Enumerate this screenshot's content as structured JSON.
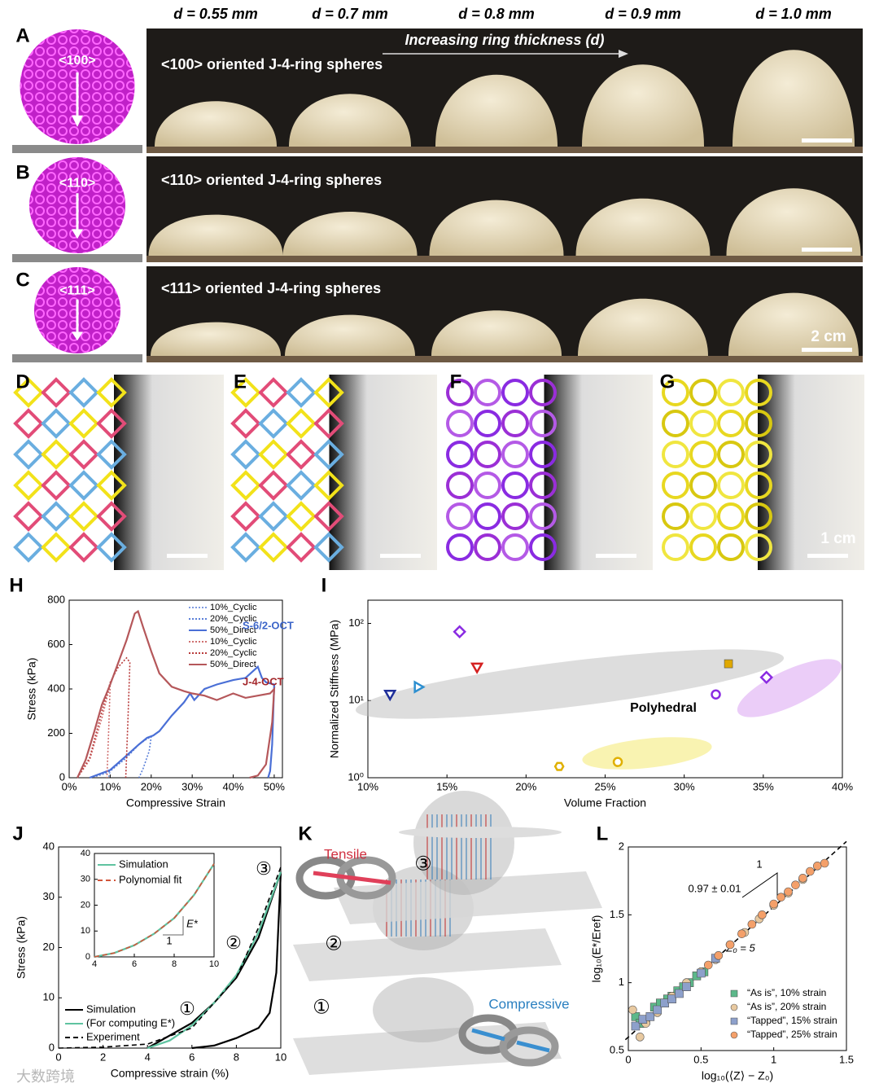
{
  "figure": {
    "panel_labels": [
      "A",
      "B",
      "C",
      "D",
      "E",
      "F",
      "G",
      "H",
      "I",
      "J",
      "K",
      "L"
    ],
    "column_headers": [
      "d = 0.55 mm",
      "d = 0.7 mm",
      "d = 0.8 mm",
      "d = 0.9 mm",
      "d = 1.0 mm"
    ],
    "arrow_label": "Increasing ring thickness (d)",
    "rows": [
      {
        "sphere": "<100>",
        "caption": "<100> oriented J-4-ring spheres"
      },
      {
        "sphere": "<110>",
        "caption": "<110> oriented J-4-ring spheres"
      },
      {
        "sphere": "<111>",
        "caption": "<111> oriented J-4-ring spheres"
      }
    ],
    "scale_bar_abc": "2 cm",
    "scale_bar_g": "1 cm",
    "k": {
      "tensile": "Tensile",
      "compressive": "Compressive",
      "steps": [
        "①",
        "②",
        "③"
      ]
    },
    "watermark": "大数跨境"
  },
  "chart_data": [
    {
      "type": "line",
      "xlabel": "Compressive Strain",
      "ylabel": "Stress (kPa)",
      "xlim": [
        0,
        52
      ],
      "ylim": [
        0,
        800
      ],
      "xticks": [
        {
          "value": 0,
          "label": "0%"
        },
        {
          "value": 10,
          "label": "10%"
        },
        {
          "value": 20,
          "label": "20%"
        },
        {
          "value": 30,
          "label": "30%"
        },
        {
          "value": 40,
          "label": "40%"
        },
        {
          "value": 50,
          "label": "50%"
        }
      ],
      "yticks": [
        0,
        200,
        400,
        600,
        800
      ],
      "legend_groups": [
        {
          "label": "S-6/2-OCT",
          "color": "#3d66c9"
        },
        {
          "label": "J-4-OCT",
          "color": "#a3262a"
        }
      ],
      "series": [
        {
          "name": "10%_Cyclic",
          "color": "#7f9be0",
          "dash": "dotted",
          "x": [
            5,
            7,
            9,
            10,
            9.6
          ],
          "values": [
            0,
            8,
            20,
            30,
            0
          ]
        },
        {
          "name": "20%_Cyclic",
          "color": "#5a7fd8",
          "dash": "dotted",
          "x": [
            5,
            10,
            14,
            17,
            19,
            20,
            19.5,
            18,
            17
          ],
          "values": [
            0,
            30,
            90,
            150,
            175,
            185,
            120,
            40,
            0
          ]
        },
        {
          "name": "50%_Direct",
          "color": "#4a6fd6",
          "dash": "solid",
          "x": [
            5,
            10,
            14,
            17,
            19,
            20.5,
            22,
            25,
            28,
            29.5,
            30.5,
            33,
            36,
            40,
            43,
            46,
            47,
            48,
            50,
            49.5,
            49,
            48.5
          ],
          "values": [
            0,
            35,
            100,
            150,
            180,
            190,
            210,
            280,
            340,
            380,
            350,
            400,
            420,
            440,
            450,
            500,
            450,
            430,
            420,
            150,
            30,
            0
          ]
        },
        {
          "name": "10%_Cyclic",
          "color": "#d07070",
          "dash": "dotted",
          "x": [
            2,
            5,
            8,
            9.5,
            10,
            9.6,
            9.2
          ],
          "values": [
            0,
            80,
            270,
            380,
            420,
            200,
            0
          ]
        },
        {
          "name": "20%_Cyclic",
          "color": "#b83a3a",
          "dash": "dotted",
          "x": [
            2,
            5,
            8,
            10,
            12,
            14,
            14.8,
            14.3,
            13.8
          ],
          "values": [
            0,
            90,
            300,
            430,
            500,
            540,
            520,
            250,
            0
          ]
        },
        {
          "name": "50%_Direct",
          "color": "#b5575a",
          "dash": "solid",
          "x": [
            2,
            4,
            6,
            8,
            10,
            12,
            14,
            16,
            16.8,
            18,
            20,
            22,
            25,
            28,
            30,
            33,
            36,
            40,
            43,
            46,
            49,
            50,
            49.5,
            48,
            46,
            44
          ],
          "values": [
            0,
            80,
            200,
            330,
            420,
            520,
            620,
            740,
            750,
            680,
            570,
            470,
            410,
            390,
            380,
            370,
            350,
            380,
            360,
            370,
            380,
            400,
            250,
            60,
            10,
            0
          ]
        }
      ]
    },
    {
      "type": "scatter",
      "xlabel": "Volume Fraction",
      "ylabel": "Normalized Stiffness (MPa)",
      "ylog": true,
      "xlim": [
        10,
        40
      ],
      "ylim": [
        1,
        200
      ],
      "xticks": [
        {
          "value": 10,
          "label": "10%"
        },
        {
          "value": 15,
          "label": "15%"
        },
        {
          "value": 20,
          "label": "20%"
        },
        {
          "value": 25,
          "label": "25%"
        },
        {
          "value": 30,
          "label": "30%"
        },
        {
          "value": 35,
          "label": "35%"
        },
        {
          "value": 40,
          "label": "40%"
        }
      ],
      "yticks": [
        {
          "value": 1,
          "label": "10⁰"
        },
        {
          "value": 10,
          "label": "10¹"
        },
        {
          "value": 100,
          "label": "10²"
        }
      ],
      "annotations": [
        "Polyhedral"
      ],
      "series": [
        {
          "marker": "triangle-down",
          "color": "#1f2f9a",
          "filled": false,
          "x": [
            11.4
          ],
          "values": [
            12
          ]
        },
        {
          "marker": "triangle-right",
          "color": "#2d8fd0",
          "filled": false,
          "x": [
            13.2
          ],
          "values": [
            15
          ]
        },
        {
          "marker": "triangle-down",
          "color": "#d42020",
          "filled": false,
          "x": [
            16.9
          ],
          "values": [
            27
          ]
        },
        {
          "marker": "diamond",
          "color": "#8a2be2",
          "filled": false,
          "x": [
            15.8
          ],
          "values": [
            78
          ]
        },
        {
          "marker": "square",
          "color": "#e0a800",
          "filled": true,
          "x": [
            32.8
          ],
          "values": [
            30
          ]
        },
        {
          "marker": "hexagon",
          "color": "#e0b000",
          "filled": false,
          "x": [
            22.1
          ],
          "values": [
            1.4
          ]
        },
        {
          "marker": "circle",
          "color": "#e0b000",
          "filled": false,
          "x": [
            25.8
          ],
          "values": [
            1.6
          ]
        },
        {
          "marker": "circle",
          "color": "#8a2be2",
          "filled": false,
          "x": [
            32
          ],
          "values": [
            12
          ]
        },
        {
          "marker": "diamond",
          "color": "#8a2be2",
          "filled": false,
          "x": [
            35.2
          ],
          "values": [
            20
          ]
        }
      ]
    },
    {
      "type": "line",
      "xlabel": "Compressive strain (%)",
      "ylabel": "Stress (kPa)",
      "xlim": [
        0,
        10
      ],
      "ylim": [
        0,
        40
      ],
      "xticks": [
        0,
        2,
        4,
        6,
        8,
        10
      ],
      "yticks": [
        0,
        10,
        20,
        30,
        40
      ],
      "annotations": [
        "①",
        "②",
        "③"
      ],
      "series": [
        {
          "name": "Simulation",
          "color": "#000",
          "dash": "solid",
          "x": [
            4,
            6,
            7,
            8,
            9,
            10,
            9.8,
            9.5,
            9,
            8,
            7,
            6
          ],
          "values": [
            0,
            5,
            9,
            14,
            22,
            35,
            15,
            7,
            4,
            2,
            0.5,
            0
          ]
        },
        {
          "name": "(For computing E*)",
          "color": "#5fc3a0",
          "dash": "solid",
          "x": [
            4,
            5,
            6,
            7,
            8,
            9,
            10
          ],
          "values": [
            0,
            1.5,
            4.5,
            9,
            14.5,
            23,
            35
          ]
        },
        {
          "name": "Experiment",
          "color": "#000",
          "dash": "dashed",
          "x": [
            0,
            2,
            4,
            6,
            8,
            9,
            10
          ],
          "values": [
            0,
            0.2,
            0.8,
            4,
            14,
            24,
            36
          ]
        }
      ]
    },
    {
      "type": "line",
      "xlim": [
        4,
        10
      ],
      "ylim": [
        0,
        40
      ],
      "xticks": [
        4,
        6,
        8,
        10
      ],
      "yticks": [
        0,
        10,
        20,
        30,
        40
      ],
      "annotations": [
        "E*",
        "1"
      ],
      "series": [
        {
          "name": "Simulation",
          "color": "#5fc3a0",
          "dash": "solid",
          "x": [
            4,
            5,
            6,
            7,
            8,
            9,
            10
          ],
          "values": [
            0,
            1.5,
            4.5,
            9,
            15,
            24,
            36
          ]
        },
        {
          "name": "Polynomial fit",
          "color": "#d2553a",
          "dash": "dashed",
          "x": [
            4,
            5,
            6,
            7,
            8,
            9,
            10
          ],
          "values": [
            0,
            1.5,
            4.5,
            9,
            15,
            24,
            36
          ]
        }
      ]
    },
    {
      "type": "scatter",
      "xlabel": "log₁₀(⟨Z⟩ − Z₀)",
      "ylabel": "log₁₀(E*/Eref)",
      "xlim": [
        0,
        1.5
      ],
      "ylim": [
        0.5,
        2
      ],
      "xticks": [
        0,
        0.5,
        1,
        1.5
      ],
      "yticks": [
        0.5,
        1,
        1.5,
        2
      ],
      "annotations": [
        "0.97 ± 0.01",
        "1",
        "Z₀ = 5"
      ],
      "series": [
        {
          "color": "#000",
          "dash": "dashed",
          "x": [
            -0.02,
            1.5
          ],
          "values": [
            0.58,
            2.04
          ]
        },
        {
          "name": "“As is”, 10% strain",
          "marker": "square",
          "color": "#5cb88a",
          "filled": true,
          "x": [
            0.05,
            0.08,
            0.12,
            0.18,
            0.22,
            0.27,
            0.3,
            0.34,
            0.38,
            0.42,
            0.47,
            0.52
          ],
          "values": [
            0.75,
            0.7,
            0.72,
            0.82,
            0.85,
            0.88,
            0.9,
            0.94,
            0.97,
            1.0,
            1.05,
            1.08
          ]
        },
        {
          "name": "“As is”, 20% strain",
          "marker": "circle",
          "color": "#e8c9a0",
          "filled": true,
          "x": [
            0.03,
            0.08,
            0.12,
            0.2,
            0.3,
            0.4,
            0.5,
            0.6,
            0.7,
            0.8,
            0.9,
            1.0,
            1.1,
            1.2
          ],
          "values": [
            0.8,
            0.6,
            0.7,
            0.78,
            0.9,
            1.0,
            1.08,
            1.17,
            1.28,
            1.37,
            1.47,
            1.57,
            1.66,
            1.76
          ]
        },
        {
          "name": "“Tapped”, 15% strain",
          "marker": "square",
          "color": "#8da0cb",
          "filled": true,
          "x": [
            0.05,
            0.1,
            0.15,
            0.2,
            0.25,
            0.3,
            0.35,
            0.4,
            0.5,
            0.6
          ],
          "values": [
            0.68,
            0.73,
            0.75,
            0.8,
            0.85,
            0.88,
            0.92,
            0.97,
            1.07,
            1.18
          ]
        },
        {
          "name": "“Tapped”, 25% strain",
          "marker": "circle",
          "color": "#f4a06a",
          "filled": true,
          "x": [
            0.55,
            0.62,
            0.7,
            0.78,
            0.85,
            0.92,
            1.0,
            1.05,
            1.1,
            1.15,
            1.2,
            1.25,
            1.3,
            1.35
          ],
          "values": [
            1.13,
            1.2,
            1.28,
            1.36,
            1.43,
            1.5,
            1.58,
            1.63,
            1.67,
            1.72,
            1.77,
            1.82,
            1.86,
            1.88
          ]
        }
      ]
    }
  ]
}
